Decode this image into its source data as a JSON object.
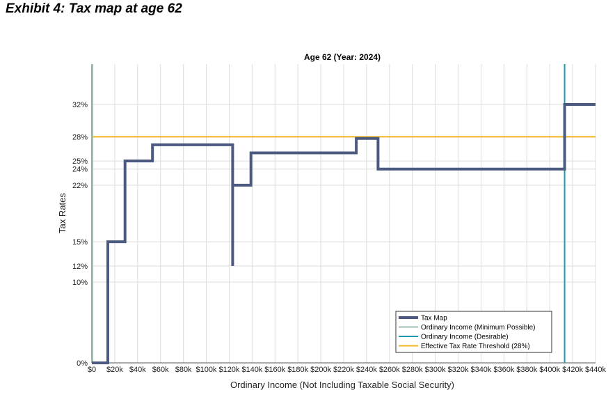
{
  "exhibit_title": "Exhibit 4: Tax map at age 62",
  "chart_data": {
    "type": "line",
    "title": "Age 62 (Year: 2024)",
    "xlabel": "Ordinary Income (Not Including Taxable Social Security)",
    "ylabel": "Tax Rates",
    "xlim": [
      0,
      440000
    ],
    "ylim": [
      0,
      37
    ],
    "x_ticks": [
      0,
      20000,
      40000,
      60000,
      80000,
      100000,
      120000,
      140000,
      160000,
      180000,
      200000,
      220000,
      240000,
      260000,
      280000,
      300000,
      320000,
      340000,
      360000,
      380000,
      400000,
      420000,
      440000
    ],
    "x_tick_labels": [
      "$0",
      "$20k",
      "$40k",
      "$60k",
      "$80k",
      "$100k",
      "$120k",
      "$140k",
      "$160k",
      "$180k",
      "$200k",
      "$220k",
      "$240k",
      "$260k",
      "$280k",
      "$300k",
      "$320k",
      "$340k",
      "$360k",
      "$380k",
      "$400k",
      "$420k",
      "$440k"
    ],
    "y_ticks": [
      0,
      10,
      12,
      15,
      22,
      24,
      25,
      28,
      32
    ],
    "y_tick_labels": [
      "0%",
      "10%",
      "12%",
      "15%",
      "22%",
      "24%",
      "25%",
      "28%",
      "32%"
    ],
    "grid": true,
    "legend_position": "bottom-right",
    "series": [
      {
        "name": "Tax Map",
        "color": "#4c5a80",
        "x": [
          0,
          14000,
          14000,
          29000,
          29000,
          53000,
          53000,
          123000,
          123000,
          123000,
          139000,
          139000,
          231000,
          231000,
          250000,
          250000,
          413000,
          413000,
          440000
        ],
        "y": [
          0,
          0,
          15,
          15,
          25,
          25,
          27,
          27,
          12,
          22,
          22,
          26,
          26,
          27.8,
          27.8,
          24,
          24,
          32,
          32
        ]
      },
      {
        "name": "Ordinary Income (Minimum Possible)",
        "color": "#9fbfb5",
        "x_value": 0
      },
      {
        "name": "Ordinary Income (Desirable)",
        "color": "#1a9bb0",
        "x_value": 413000
      },
      {
        "name": "Effective Tax Rate Threshold (28%)",
        "color": "#f0b41e",
        "y_value": 28
      }
    ]
  }
}
